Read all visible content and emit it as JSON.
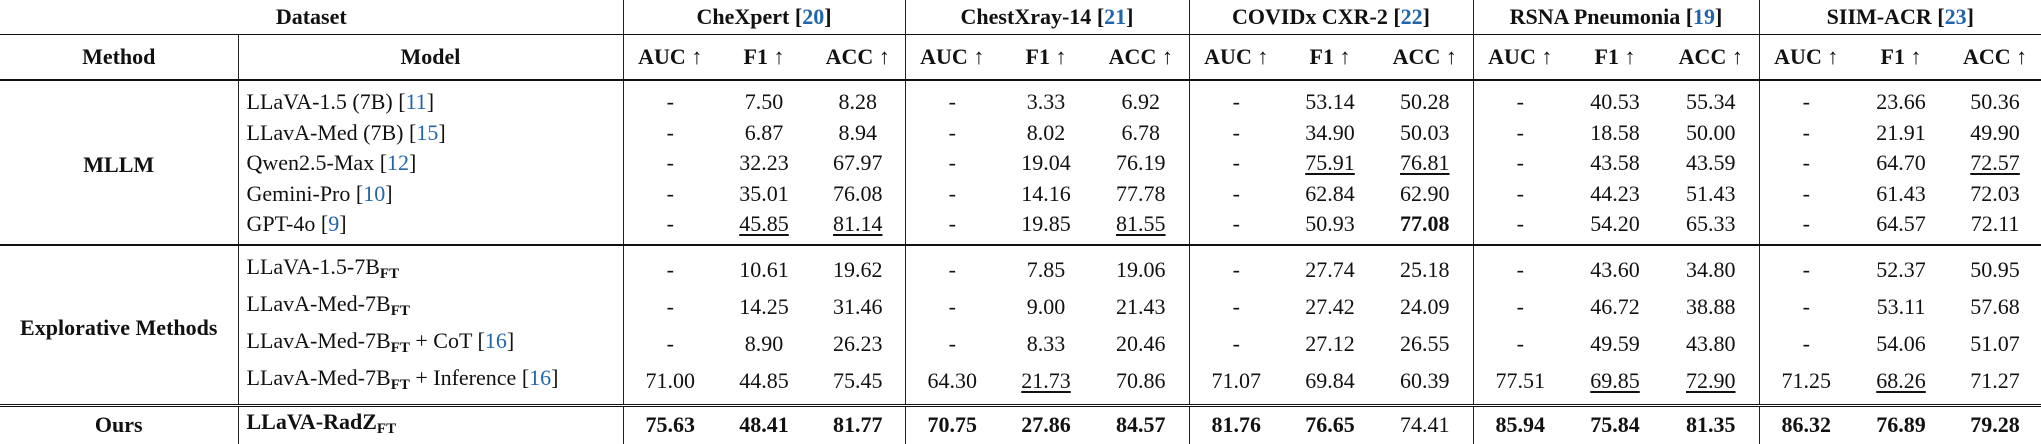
{
  "header": {
    "dataset_label": "Dataset",
    "method_label": "Method",
    "model_label": "Model",
    "datasets": [
      {
        "name": "CheXpert",
        "ref": "20"
      },
      {
        "name": "ChestXray-14",
        "ref": "21"
      },
      {
        "name": "COVIDx CXR-2",
        "ref": "22"
      },
      {
        "name": "RSNA Pneumonia",
        "ref": "19"
      },
      {
        "name": "SIIM-ACR",
        "ref": "23"
      }
    ],
    "metrics": [
      "AUC ↑",
      "F1 ↑",
      "ACC ↑"
    ]
  },
  "groups": [
    {
      "method": "MLLM",
      "rows": [
        {
          "model": "LLaVA-1.5 (7B)",
          "sub": "",
          "suffix": "",
          "ref": "11",
          "values": [
            "-",
            "7.50",
            "8.28",
            "-",
            "3.33",
            "6.92",
            "-",
            "53.14",
            "50.28",
            "-",
            "40.53",
            "55.34",
            "-",
            "23.66",
            "50.36"
          ]
        },
        {
          "model": "LLavA-Med (7B)",
          "sub": "",
          "suffix": "",
          "ref": "15",
          "values": [
            "-",
            "6.87",
            "8.94",
            "-",
            "8.02",
            "6.78",
            "-",
            "34.90",
            "50.03",
            "-",
            "18.58",
            "50.00",
            "-",
            "21.91",
            "49.90"
          ]
        },
        {
          "model": "Qwen2.5-Max",
          "sub": "",
          "suffix": "",
          "ref": "12",
          "values": [
            "-",
            "32.23",
            "67.97",
            "-",
            "19.04",
            "76.19",
            "-",
            "75.91",
            "76.81",
            "-",
            "43.58",
            "43.59",
            "-",
            "64.70",
            "72.57"
          ]
        },
        {
          "model": "Gemini-Pro",
          "sub": "",
          "suffix": "",
          "ref": "10",
          "values": [
            "-",
            "35.01",
            "76.08",
            "-",
            "14.16",
            "77.78",
            "-",
            "62.84",
            "62.90",
            "-",
            "44.23",
            "51.43",
            "-",
            "61.43",
            "72.03"
          ]
        },
        {
          "model": "GPT-4o",
          "sub": "",
          "suffix": "",
          "ref": "9",
          "values": [
            "-",
            "45.85",
            "81.14",
            "-",
            "19.85",
            "81.55",
            "-",
            "50.93",
            "77.08",
            "-",
            "54.20",
            "65.33",
            "-",
            "64.57",
            "72.11"
          ]
        }
      ]
    },
    {
      "method": "Explorative Methods",
      "rows": [
        {
          "model": "LLaVA-1.5-7B",
          "sub": "FT",
          "suffix": "",
          "ref": "",
          "values": [
            "-",
            "10.61",
            "19.62",
            "-",
            "7.85",
            "19.06",
            "-",
            "27.74",
            "25.18",
            "-",
            "43.60",
            "34.80",
            "-",
            "52.37",
            "50.95"
          ]
        },
        {
          "model": "LLavA-Med-7B",
          "sub": "FT",
          "suffix": "",
          "ref": "",
          "values": [
            "-",
            "14.25",
            "31.46",
            "-",
            "9.00",
            "21.43",
            "-",
            "27.42",
            "24.09",
            "-",
            "46.72",
            "38.88",
            "-",
            "53.11",
            "57.68"
          ]
        },
        {
          "model": "LLavA-Med-7B",
          "sub": "FT",
          "suffix": " + CoT",
          "ref": "16",
          "values": [
            "-",
            "8.90",
            "26.23",
            "-",
            "8.33",
            "20.46",
            "-",
            "27.12",
            "26.55",
            "-",
            "49.59",
            "43.80",
            "-",
            "54.06",
            "51.07"
          ]
        },
        {
          "model": "LLavA-Med-7B",
          "sub": "FT",
          "suffix": " + Inference",
          "ref": "16",
          "values": [
            "71.00",
            "44.85",
            "75.45",
            "64.30",
            "21.73",
            "70.86",
            "71.07",
            "69.84",
            "60.39",
            "77.51",
            "69.85",
            "72.90",
            "71.25",
            "68.26",
            "71.27"
          ]
        }
      ]
    }
  ],
  "ours": {
    "method": "Ours",
    "model": "LLaVA-RadZ",
    "sub": "FT",
    "values": [
      "75.63",
      "48.41",
      "81.77",
      "70.75",
      "27.86",
      "84.57",
      "81.76",
      "76.65",
      "74.41",
      "85.94",
      "75.84",
      "81.35",
      "86.32",
      "76.89",
      "79.28"
    ]
  }
}
